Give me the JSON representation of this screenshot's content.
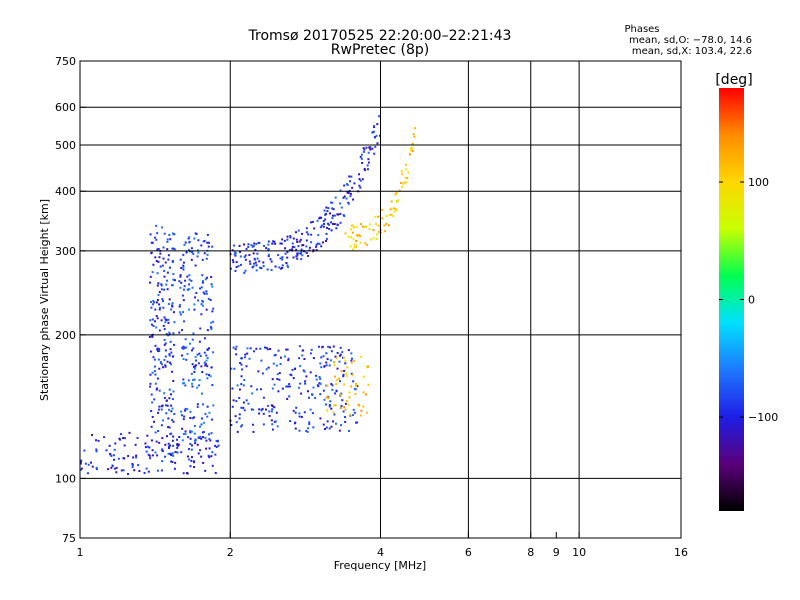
{
  "chart_data": {
    "type": "scatter",
    "title": "Tromsø 20170525 22:20:00–22:21:43",
    "subtitle": "RwPretec (8p)",
    "xlabel": "Frequency [MHz]",
    "ylabel": "Stationary phase Virtual Height [km]",
    "x_scale": "log",
    "y_scale": "log",
    "xlim": [
      1,
      16
    ],
    "ylim": [
      75,
      750
    ],
    "x_ticks": [
      1,
      2,
      4,
      6,
      8,
      9,
      10,
      16
    ],
    "x_tick_labels": [
      "1",
      "2",
      "4",
      "6",
      "8",
      "9",
      "10",
      "16"
    ],
    "x_gridlines": [
      2,
      4,
      6,
      8,
      10
    ],
    "y_ticks": [
      75,
      100,
      200,
      300,
      400,
      500,
      600,
      750
    ],
    "y_tick_labels": [
      "75",
      "100",
      "200",
      "300",
      "400",
      "500",
      "600",
      "750"
    ],
    "y_gridlines": [
      100,
      200,
      300,
      400,
      500,
      600
    ],
    "grid": true,
    "legend": {
      "title": "Phases",
      "lines": [
        "mean, sd,O: −78.0, 14.6",
        "mean, sd,X: 103.4, 22.6"
      ],
      "placement": "top-right"
    },
    "colorbar": {
      "label": "[deg]",
      "ticks": [
        100,
        0,
        -100
      ],
      "tick_labels": [
        "100",
        "0",
        "−100"
      ],
      "range": [
        -180,
        180
      ],
      "colormap": [
        "#000000",
        "#5a007a",
        "#1e1ee6",
        "#1e78ff",
        "#00e0ff",
        "#00ff50",
        "#c8ff00",
        "#ffd700",
        "#ff8c00",
        "#ff0000"
      ]
    },
    "traces": [
      {
        "comment": "low E/F1 region near 100-120 km",
        "x": [
          1.0,
          1.9
        ],
        "y": [
          102,
          125
        ],
        "phase_mean": -100,
        "n": 140
      },
      {
        "comment": "vertical band 1.4-1.5 MHz",
        "x": [
          1.38,
          1.55
        ],
        "y": [
          110,
          340
        ],
        "phase_mean": -90,
        "n": 220
      },
      {
        "comment": "vertical band 1.6-1.8 MHz",
        "x": [
          1.58,
          1.85
        ],
        "y": [
          120,
          330
        ],
        "phase_mean": -80,
        "n": 220
      },
      {
        "comment": "F1 trace 2-3.5 MHz",
        "x": [
          2.0,
          3.6
        ],
        "y": [
          125,
          190
        ],
        "phase_mean": -90,
        "n": 260
      },
      {
        "comment": "F2 O trace",
        "x": [
          2.0,
          4.0
        ],
        "y": [
          265,
          600
        ],
        "phase_mean": -95,
        "n": 260
      },
      {
        "comment": "F2 X trace",
        "x": [
          3.4,
          4.7
        ],
        "y": [
          300,
          560
        ],
        "phase_mean": 103,
        "n": 90
      },
      {
        "comment": "X F1 spots",
        "x": [
          3.1,
          3.8
        ],
        "y": [
          135,
          180
        ],
        "phase_mean": 110,
        "n": 50
      }
    ]
  }
}
